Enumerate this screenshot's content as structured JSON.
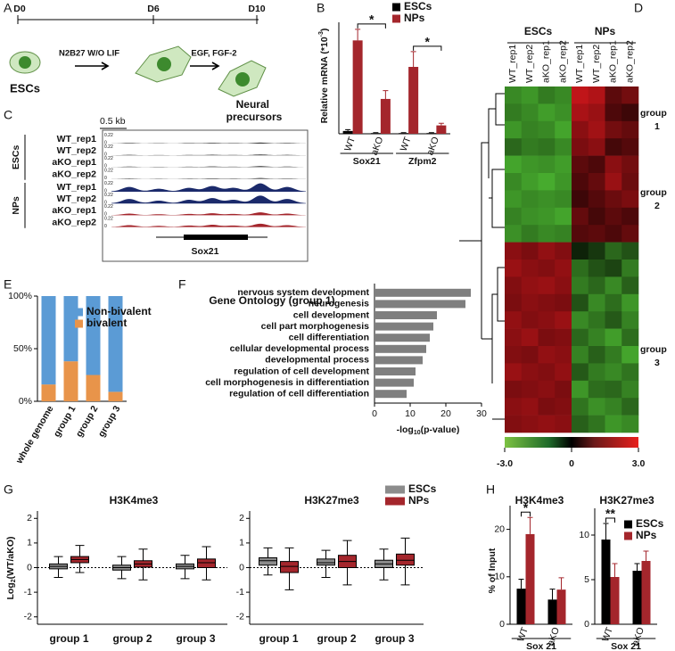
{
  "panel_labels": [
    "A",
    "B",
    "C",
    "D",
    "E",
    "F",
    "G",
    "H"
  ],
  "panel_a": {
    "timepoints": [
      "D0",
      "D6",
      "D10"
    ],
    "steps": [
      "N2B27 W/O LIF",
      "EGF, FGF-2"
    ],
    "start_cell": "ESCs",
    "end_cell": [
      "Neural",
      "precursors"
    ]
  },
  "panel_c": {
    "scale": "0.5 kb",
    "track_max": "0.22",
    "track_min": "0",
    "gene": "Sox21",
    "conditions": [
      {
        "name": "ESCs",
        "tracks": [
          "WT_rep1",
          "WT_rep2",
          "aKO_rep1",
          "aKO_rep2"
        ]
      },
      {
        "name": "NPs",
        "tracks": [
          "WT_rep1",
          "WT_rep2",
          "aKO_rep1",
          "aKO_rep2"
        ]
      }
    ]
  },
  "chart_data": [
    {
      "type": "bar",
      "y_label_parts": [
        "Relative mRNA (*10",
        "-3",
        ")"
      ],
      "groups": [
        "Sox21",
        "Zfpm2"
      ],
      "categories": [
        "WT",
        "aKO",
        "WT",
        "aKO"
      ],
      "series": [
        {
          "name": "ESCs",
          "color": "#000000",
          "values": [
            0.2,
            0.05,
            0.05,
            0.05
          ],
          "errors": [
            0.1,
            0.03,
            0.03,
            0.03
          ]
        },
        {
          "name": "NPs",
          "color": "#a4262c",
          "values": [
            6.7,
            2.5,
            4.8,
            0.6
          ],
          "errors": [
            0.8,
            0.6,
            1.1,
            0.15
          ]
        }
      ],
      "ylim": [
        0,
        8
      ],
      "annotations": [
        "*",
        "*"
      ],
      "legend": true
    },
    {
      "type": "heatmap",
      "column_groups": [
        "ESCs",
        "NPs"
      ],
      "columns": [
        "WT_rep1",
        "WT_rep2",
        "aKO_rep1",
        "aKO_rep2",
        "WT_rep1",
        "WT_rep2",
        "aKO_rep1",
        "aKO_rep2"
      ],
      "row_groups": [
        [
          "group",
          "1"
        ],
        [
          "group",
          "2"
        ],
        [
          "group",
          "3"
        ]
      ],
      "values": [
        [
          -2,
          -2.2,
          -1.8,
          -2,
          2.5,
          2.3,
          1.2,
          1.5
        ],
        [
          -1.8,
          -2,
          -2.3,
          -2.1,
          2.2,
          2,
          1,
          0.8
        ],
        [
          -2.2,
          -1.9,
          -2,
          -2.4,
          1.8,
          2.1,
          1.5,
          1.3
        ],
        [
          -1.5,
          -1.8,
          -1.7,
          -2,
          1.6,
          1.8,
          0.9,
          1.1
        ],
        [
          -2.4,
          -2.2,
          -2.1,
          -2.3,
          1.2,
          1,
          1.8,
          1.5
        ],
        [
          -2,
          -2.3,
          -2.5,
          -2.2,
          1,
          1.3,
          2,
          1.4
        ],
        [
          -2.2,
          -2,
          -2.1,
          -2,
          0.8,
          1.1,
          1.4,
          1.6
        ],
        [
          -1.9,
          -2.1,
          -2.2,
          -2.4,
          1.3,
          0.9,
          1.2,
          1
        ],
        [
          -2.1,
          -1.8,
          -2,
          -1.9,
          1.1,
          1.2,
          1,
          1.3
        ],
        [
          1.8,
          1.6,
          1.9,
          1.7,
          -0.5,
          -0.8,
          -1.5,
          -1.2
        ],
        [
          2,
          1.8,
          1.7,
          1.9,
          -1.6,
          -1.2,
          -1,
          -1.8
        ],
        [
          1.7,
          1.9,
          2,
          1.8,
          -1.8,
          -1.5,
          -2,
          -1.4
        ],
        [
          1.6,
          1.8,
          1.7,
          1.6,
          -1.2,
          -2,
          -1.6,
          -2.2
        ],
        [
          1.9,
          1.7,
          1.8,
          2,
          -2,
          -1.7,
          -1.3,
          -1.9
        ],
        [
          1.8,
          2,
          1.6,
          1.7,
          -1.5,
          -1.9,
          -2.3,
          -1.6
        ],
        [
          1.7,
          1.6,
          1.9,
          1.8,
          -1.9,
          -1.4,
          -1.8,
          -2.4
        ],
        [
          2,
          1.8,
          1.7,
          1.9,
          -1.3,
          -1.8,
          -2,
          -1.7
        ],
        [
          1.6,
          1.7,
          1.8,
          1.6,
          -2.2,
          -1.6,
          -1.5,
          -1.9
        ],
        [
          1.8,
          1.9,
          1.6,
          1.7,
          -1.7,
          -2.1,
          -1.9,
          -1.5
        ],
        [
          1.7,
          1.8,
          1.9,
          1.8,
          -1.4,
          -1.7,
          -2.2,
          -2
        ]
      ],
      "zlim": [
        -3,
        3
      ],
      "zticks": [
        {
          "value": -3,
          "label": "-3.0"
        },
        0,
        {
          "value": 3,
          "label": "3.0"
        }
      ]
    },
    {
      "type": "stacked_bar",
      "categories": [
        "whole genome",
        "group 1",
        "group 2",
        "group 3"
      ],
      "series": [
        {
          "name": "Non-bivalent",
          "color": "#5b9bd5",
          "values": [
            84,
            62,
            75,
            91
          ]
        },
        {
          "name": "bivalent",
          "color": "#e8944a",
          "values": [
            16,
            38,
            25,
            9
          ]
        }
      ],
      "ylim": [
        0,
        100
      ],
      "yticks": [
        {
          "value": 0,
          "label": "0%"
        },
        {
          "value": 50,
          "label": "50%"
        },
        {
          "value": 100,
          "label": "100%"
        }
      ]
    },
    {
      "type": "hbar",
      "title": "Gene Ontology (group 1)",
      "x_label_parts": [
        "-log",
        "10",
        "(p-value)"
      ],
      "categories": [
        "nervous system development",
        "neurogenesis",
        "cell development",
        "cell part morphogenesis",
        "cell differentiation",
        "cellular developmental process",
        "developmental process",
        "regulation of cell development",
        "cell morphogenesis in differentiation",
        "regulation of cell differentiation"
      ],
      "values": [
        27,
        25.5,
        17.5,
        16.5,
        15.5,
        14.5,
        13.5,
        11.5,
        11,
        9
      ],
      "color": "#7f7f7f",
      "xlim": [
        0,
        30
      ],
      "xticks": [
        0,
        10,
        20,
        30
      ]
    },
    {
      "type": "box",
      "title": "H3K4me3",
      "y_label_parts": [
        "Log",
        "2",
        "(WT/aKO)"
      ],
      "categories": [
        "group 1",
        "group 2",
        "group 3"
      ],
      "series": [
        {
          "name": "ESCs",
          "color": "#8c8c8c",
          "whisker_low": [
            -0.4,
            -0.45,
            -0.45
          ],
          "q1": [
            -0.05,
            -0.1,
            -0.05
          ],
          "median": [
            0.05,
            0,
            0.05
          ],
          "q3": [
            0.15,
            0.1,
            0.15
          ],
          "whisker_high": [
            0.45,
            0.45,
            0.5
          ]
        },
        {
          "name": "NPs",
          "color": "#a4262c",
          "whisker_low": [
            -0.2,
            -0.5,
            -0.5
          ],
          "q1": [
            0.2,
            0.02,
            0
          ],
          "median": [
            0.33,
            0.15,
            0.2
          ],
          "q3": [
            0.45,
            0.28,
            0.35
          ],
          "whisker_high": [
            0.9,
            0.75,
            0.85
          ]
        }
      ],
      "ylim": [
        -2.3,
        2.3
      ],
      "yticks": [
        -2,
        -1,
        0,
        1,
        2
      ],
      "legend": false
    },
    {
      "type": "box",
      "title": "H3K27me3",
      "categories": [
        "group 1",
        "group 2",
        "group 3"
      ],
      "series": [
        {
          "name": "ESCs",
          "color": "#8c8c8c",
          "whisker_low": [
            -0.3,
            -0.4,
            -0.5
          ],
          "q1": [
            0.1,
            0.1,
            0
          ],
          "median": [
            0.28,
            0.2,
            0.15
          ],
          "q3": [
            0.4,
            0.35,
            0.3
          ],
          "whisker_high": [
            0.8,
            0.7,
            0.75
          ]
        },
        {
          "name": "NPs",
          "color": "#a4262c",
          "whisker_low": [
            -0.9,
            -0.7,
            -0.7
          ],
          "q1": [
            -0.2,
            0,
            0.1
          ],
          "median": [
            0.05,
            0.25,
            0.3
          ],
          "q3": [
            0.25,
            0.5,
            0.55
          ],
          "whisker_high": [
            0.8,
            1.1,
            1.2
          ]
        }
      ],
      "ylim": [
        -2.3,
        2.3
      ],
      "yticks": [
        -2,
        -1,
        0,
        1,
        2
      ],
      "legend": true
    },
    {
      "type": "bar",
      "title": "H3K4me3",
      "y_label": "% of Input",
      "groups": [
        "Sox 21"
      ],
      "categories": [
        "WT",
        "aKO"
      ],
      "series": [
        {
          "name": "ESCs",
          "color": "#000000",
          "values": [
            7.5,
            5.2
          ],
          "errors": [
            2,
            2.2
          ]
        },
        {
          "name": "NPs",
          "color": "#a4262c",
          "values": [
            19,
            7.3
          ],
          "errors": [
            3.5,
            2.5
          ]
        }
      ],
      "ylim": [
        0,
        25
      ],
      "yticks": [
        0,
        10,
        20
      ],
      "annotations": [
        "*"
      ],
      "legend": false
    },
    {
      "type": "bar",
      "title": "H3K27me3",
      "groups": [
        "Sox 21"
      ],
      "categories": [
        "WT",
        "aKO"
      ],
      "series": [
        {
          "name": "ESCs",
          "color": "#000000",
          "values": [
            9.5,
            6
          ],
          "errors": [
            1.8,
            0.8
          ]
        },
        {
          "name": "NPs",
          "color": "#a4262c",
          "values": [
            5.3,
            7.1
          ],
          "errors": [
            1.5,
            1.1
          ]
        }
      ],
      "ylim": [
        0,
        13
      ],
      "yticks": [
        0,
        5,
        10
      ],
      "annotations": [
        "**"
      ],
      "legend": true
    }
  ]
}
